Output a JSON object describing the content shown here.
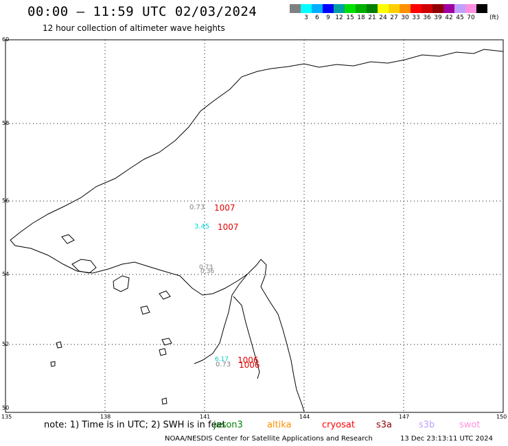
{
  "header": {
    "title": "00:00 – 11:59 UTC 02/03/2024",
    "subtitle": "12 hour collection of altimeter wave heights"
  },
  "legend": {
    "unit": "(ft)",
    "items": [
      {
        "label": "",
        "color": "#808080"
      },
      {
        "label": "3",
        "color": "#00ffff"
      },
      {
        "label": "6",
        "color": "#00b0ff"
      },
      {
        "label": "9",
        "color": "#0000ff"
      },
      {
        "label": "12",
        "color": "#00a0a0"
      },
      {
        "label": "15",
        "color": "#00e000"
      },
      {
        "label": "18",
        "color": "#00b000"
      },
      {
        "label": "21",
        "color": "#008000"
      },
      {
        "label": "24",
        "color": "#ffff00"
      },
      {
        "label": "27",
        "color": "#ffd000"
      },
      {
        "label": "30",
        "color": "#ff9000"
      },
      {
        "label": "33",
        "color": "#ff0000"
      },
      {
        "label": "36",
        "color": "#d00000"
      },
      {
        "label": "39",
        "color": "#900000"
      },
      {
        "label": "42",
        "color": "#a000a0"
      },
      {
        "label": "45",
        "color": "#c0a0ff"
      },
      {
        "label": "70",
        "color": "#ff90e0"
      },
      {
        "label": "",
        "color": "#000000"
      }
    ]
  },
  "map": {
    "lat_labels": [
      "60",
      "58",
      "56",
      "54",
      "52",
      "50"
    ],
    "lon_labels": [
      "135",
      "138",
      "141",
      "144",
      "147",
      "150"
    ],
    "observations": [
      {
        "swh": "0.73",
        "color": "#808080",
        "pressure": "1007"
      },
      {
        "swh": "3.45",
        "color": "#00d8d8",
        "pressure": "1007"
      },
      {
        "swh": "0.73",
        "color": "#808080",
        "pressure": ""
      },
      {
        "swh": "0.36",
        "color": "#808080",
        "pressure": ""
      },
      {
        "swh": "6.17",
        "color": "#00c8c8",
        "pressure": "1006"
      },
      {
        "swh": "0.73",
        "color": "#808080",
        "pressure": "1006"
      }
    ]
  },
  "footer": {
    "note": "note:  1) Time is in UTC; 2) SWH is in feet",
    "satellites": [
      {
        "label": "jason3",
        "color": "#008000"
      },
      {
        "label": "altika",
        "color": "#ff9000"
      },
      {
        "label": "cryosat",
        "color": "#ff0000"
      },
      {
        "label": "s3a",
        "color": "#900000"
      },
      {
        "label": "s3b",
        "color": "#c0a0ff"
      },
      {
        "label": "swot",
        "color": "#ff90e0"
      }
    ],
    "credit": "NOAA/NESDIS Center for Satellite Applications and Research",
    "timestamp": "13 Dec 23:13:11 UTC 2024"
  }
}
